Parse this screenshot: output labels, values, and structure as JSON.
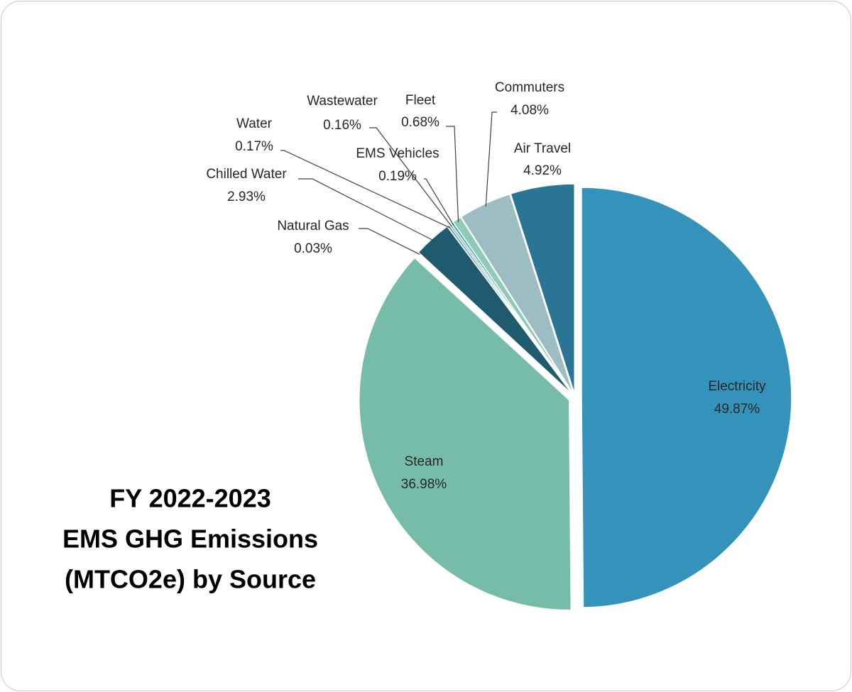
{
  "chart_data": {
    "type": "pie",
    "title": [
      "FY 2022-2023",
      "EMS GHG Emissions",
      "(MTCO2e) by Source"
    ],
    "categories": [
      "Electricity",
      "Steam",
      "Natural Gas",
      "Chilled Water",
      "Water",
      "Wastewater",
      "EMS Vehicles",
      "Fleet",
      "Commuters",
      "Air Travel"
    ],
    "values": [
      49.87,
      36.98,
      0.03,
      2.93,
      0.17,
      0.16,
      0.19,
      0.68,
      4.08,
      4.92
    ],
    "value_labels": [
      "49.87%",
      "36.98%",
      "0.03%",
      "2.93%",
      "0.17%",
      "0.16%",
      "0.19%",
      "0.68%",
      "4.08%",
      "4.92%"
    ],
    "colors": [
      "#3593bb",
      "#76bca8",
      "#2c8a84",
      "#1f5a6e",
      "#3f8fa7",
      "#5fb3a6",
      "#3aa0c9",
      "#8fcab5",
      "#9dbcc4",
      "#2a7594"
    ]
  }
}
